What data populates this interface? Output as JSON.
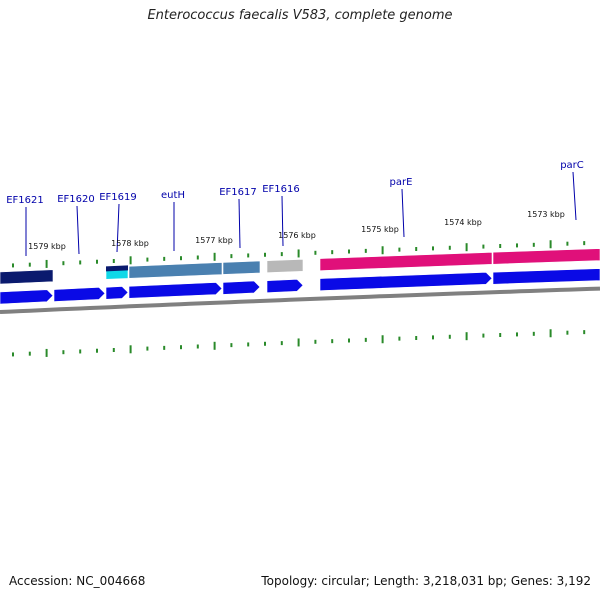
{
  "title": "Enterococcus faecalis V583, complete genome",
  "footer": {
    "accession": "Accession: NC_004668",
    "topology": "Topology: circular; Length: 3,218,031 bp; Genes: 3,192"
  },
  "colors": {
    "navy": "#0a1a6e",
    "steel": "#4a80b0",
    "gray": "#b8b8b8",
    "magenta": "#e0107a",
    "cyan": "#10d8e8",
    "blue": "#0a0ae6",
    "backbone": "#808080",
    "tick": "#2a8a2a",
    "label": "#0000aa"
  },
  "gene_labels": [
    "EF1621",
    "EF1620",
    "EF1619",
    "eutH",
    "EF1617",
    "EF1616",
    "parE",
    "parC"
  ],
  "kbp_labels": [
    "1579 kbp",
    "1578 kbp",
    "1577 kbp",
    "1576 kbp",
    "1575 kbp",
    "1574 kbp",
    "1573 kbp"
  ]
}
